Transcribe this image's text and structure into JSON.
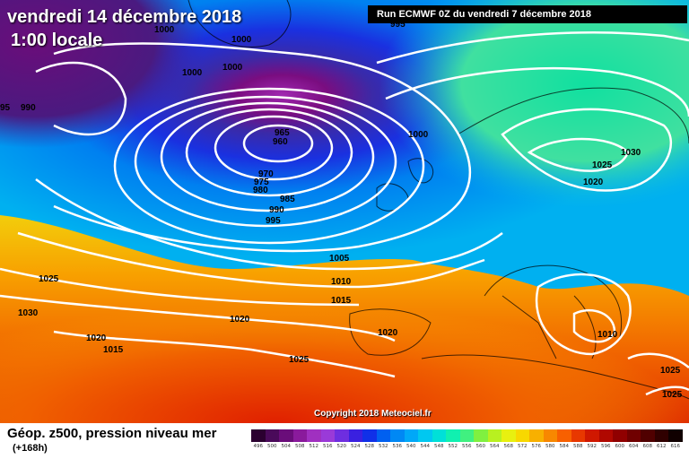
{
  "header": {
    "date": "vendredi 14 décembre 2018",
    "time": "1:00 locale",
    "run": "Run ECMWF 0Z du vendredi 7 décembre 2018"
  },
  "copyright": "Copyright 2018 Meteociel.fr",
  "legend": {
    "title": "Géop. z500, pression niveau mer",
    "subtitle": "(+168h)",
    "scale": [
      {
        "v": "496",
        "c": "#2b0030"
      },
      {
        "v": "500",
        "c": "#4a0a5a"
      },
      {
        "v": "504",
        "c": "#6a0d7a"
      },
      {
        "v": "508",
        "c": "#8a1a9c"
      },
      {
        "v": "512",
        "c": "#a030c0"
      },
      {
        "v": "516",
        "c": "#9a3ad8"
      },
      {
        "v": "520",
        "c": "#6e2ee0"
      },
      {
        "v": "524",
        "c": "#3a20e0"
      },
      {
        "v": "528",
        "c": "#1030e8"
      },
      {
        "v": "532",
        "c": "#0060f0"
      },
      {
        "v": "536",
        "c": "#0088f4"
      },
      {
        "v": "540",
        "c": "#00a8f8"
      },
      {
        "v": "544",
        "c": "#00c8f0"
      },
      {
        "v": "548",
        "c": "#00e0d8"
      },
      {
        "v": "552",
        "c": "#10f0b0"
      },
      {
        "v": "556",
        "c": "#40f080"
      },
      {
        "v": "560",
        "c": "#80f040"
      },
      {
        "v": "564",
        "c": "#b8f020"
      },
      {
        "v": "568",
        "c": "#e8f010"
      },
      {
        "v": "572",
        "c": "#f8d800"
      },
      {
        "v": "576",
        "c": "#f8b000"
      },
      {
        "v": "580",
        "c": "#f88800"
      },
      {
        "v": "584",
        "c": "#f86000"
      },
      {
        "v": "588",
        "c": "#e83800"
      },
      {
        "v": "592",
        "c": "#d01800"
      },
      {
        "v": "596",
        "c": "#b00800"
      },
      {
        "v": "600",
        "c": "#900000"
      },
      {
        "v": "604",
        "c": "#700000"
      },
      {
        "v": "608",
        "c": "#500000"
      },
      {
        "v": "612",
        "c": "#300000"
      },
      {
        "v": "616",
        "c": "#100000"
      }
    ]
  },
  "pressure_labels": [
    "995",
    "1000",
    "1000",
    "1000",
    "1000",
    "1000",
    "95",
    "990",
    "965",
    "960",
    "970",
    "975",
    "980",
    "985",
    "990",
    "995",
    "1000",
    "1030",
    "1025",
    "1020",
    "1005",
    "1010",
    "1015",
    "1025",
    "1030",
    "1020",
    "1015",
    "1020",
    "1020",
    "1025",
    "1010",
    "1025",
    "1025"
  ]
}
